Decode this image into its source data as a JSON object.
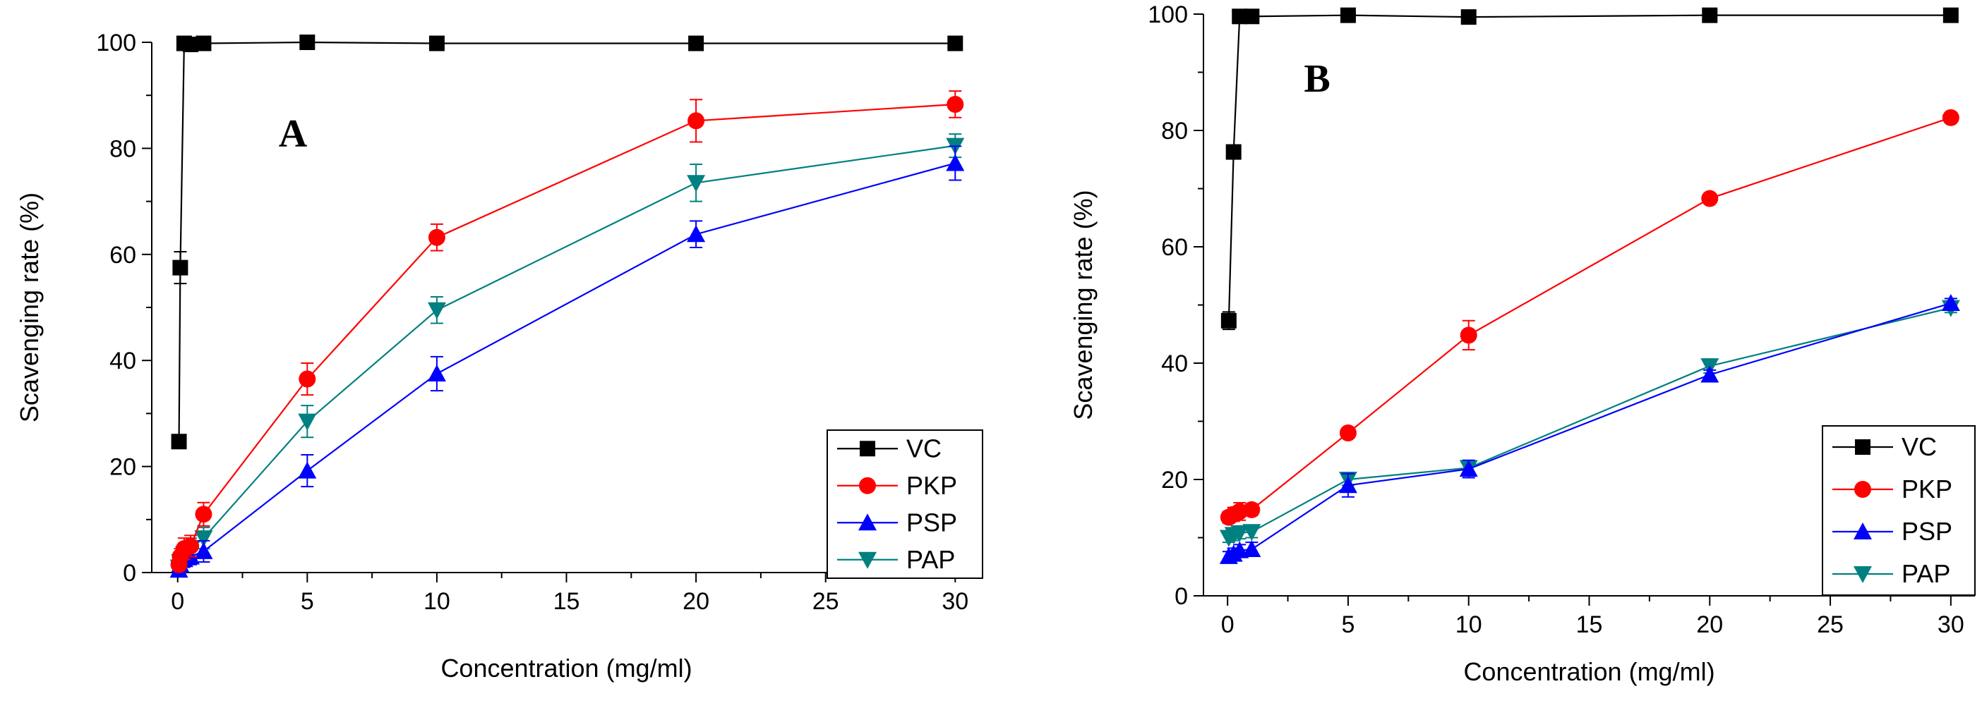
{
  "chart_data": [
    {
      "type": "line",
      "panel_label": "A",
      "xlabel": "Concentration (mg/ml)",
      "ylabel": "Scavenging rate (%)",
      "xlim": [
        -1,
        31
      ],
      "ylim": [
        0,
        100
      ],
      "xticks": [
        0,
        5,
        10,
        15,
        20,
        25,
        30
      ],
      "yticks": [
        0,
        20,
        40,
        60,
        80,
        100
      ],
      "legend_position": "bottom-right",
      "series": [
        {
          "name": "VC",
          "color": "#000000",
          "marker": "square",
          "x": [
            0.05,
            0.1,
            0.25,
            0.5,
            1,
            5,
            10,
            20,
            30
          ],
          "y": [
            24.7,
            57.5,
            99.8,
            99.6,
            99.8,
            100,
            99.8,
            99.8,
            99.8
          ],
          "err": [
            1.2,
            3.0,
            0.3,
            0.3,
            0.2,
            0.2,
            0.2,
            0.2,
            0.2
          ]
        },
        {
          "name": "PKP",
          "color": "#ff0000",
          "marker": "circle",
          "x": [
            0.05,
            0.1,
            0.25,
            0.5,
            1,
            5,
            10,
            20,
            30
          ],
          "y": [
            1.5,
            3.0,
            4.5,
            5.0,
            11.0,
            36.5,
            63.2,
            85.2,
            88.3
          ],
          "err": [
            1.0,
            1.5,
            2.0,
            2.0,
            2.2,
            3.0,
            2.5,
            4.0,
            2.5
          ]
        },
        {
          "name": "PSP",
          "color": "#0000ff",
          "marker": "triangle-up",
          "x": [
            0.05,
            0.1,
            0.25,
            0.5,
            1,
            5,
            10,
            20,
            30
          ],
          "y": [
            0.5,
            1.5,
            2.5,
            3.0,
            4.0,
            19.2,
            37.5,
            63.8,
            77.2
          ],
          "err": [
            1.0,
            1.2,
            1.5,
            1.5,
            2.0,
            3.0,
            3.2,
            2.5,
            3.2
          ]
        },
        {
          "name": "PAP",
          "color": "#008080",
          "marker": "triangle-down",
          "x": [
            0.05,
            0.1,
            0.25,
            0.5,
            1,
            5,
            10,
            20,
            30
          ],
          "y": [
            1.0,
            2.0,
            3.5,
            4.5,
            6.5,
            28.5,
            49.5,
            73.5,
            80.5
          ],
          "err": [
            1.0,
            1.5,
            2.0,
            2.0,
            2.0,
            3.0,
            2.5,
            3.5,
            2.2
          ]
        }
      ]
    },
    {
      "type": "line",
      "panel_label": "B",
      "xlabel": "Concentration (mg/ml)",
      "ylabel": "Scavenging rate (%)",
      "xlim": [
        -1,
        31
      ],
      "ylim": [
        0,
        100
      ],
      "xticks": [
        0,
        5,
        10,
        15,
        20,
        25,
        30
      ],
      "yticks": [
        0,
        20,
        40,
        60,
        80,
        100
      ],
      "legend_position": "bottom-right",
      "series": [
        {
          "name": "VC",
          "color": "#000000",
          "marker": "square",
          "x": [
            0.05,
            0.25,
            0.5,
            1,
            5,
            10,
            20,
            30
          ],
          "y": [
            47.3,
            76.3,
            99.6,
            99.6,
            99.8,
            99.5,
            99.8,
            99.8
          ],
          "err": [
            1.5,
            0.5,
            0.3,
            0.3,
            0.2,
            0.3,
            0.2,
            0.2
          ]
        },
        {
          "name": "PKP",
          "color": "#ff0000",
          "marker": "circle",
          "x": [
            0.05,
            0.25,
            0.5,
            1,
            5,
            10,
            20,
            30
          ],
          "y": [
            13.5,
            14.0,
            14.5,
            14.8,
            28.0,
            44.8,
            68.3,
            82.2
          ],
          "err": [
            1.0,
            1.2,
            1.5,
            1.0,
            0.8,
            2.5,
            0.8,
            0.8
          ]
        },
        {
          "name": "PSP",
          "color": "#0000ff",
          "marker": "triangle-up",
          "x": [
            0.05,
            0.25,
            0.5,
            1,
            5,
            10,
            20,
            30
          ],
          "y": [
            6.8,
            7.2,
            7.8,
            8.0,
            19.0,
            21.8,
            38.0,
            50.3
          ],
          "err": [
            0.8,
            1.0,
            1.0,
            1.2,
            2.0,
            1.5,
            0.8,
            0.8
          ]
        },
        {
          "name": "PAP",
          "color": "#008080",
          "marker": "triangle-down",
          "x": [
            0.05,
            0.25,
            0.5,
            1,
            5,
            10,
            20,
            30
          ],
          "y": [
            10.0,
            10.5,
            10.8,
            11.0,
            20.0,
            22.0,
            39.5,
            49.5
          ],
          "err": [
            0.8,
            1.0,
            1.0,
            1.0,
            1.0,
            1.0,
            1.2,
            0.8
          ]
        }
      ]
    }
  ]
}
